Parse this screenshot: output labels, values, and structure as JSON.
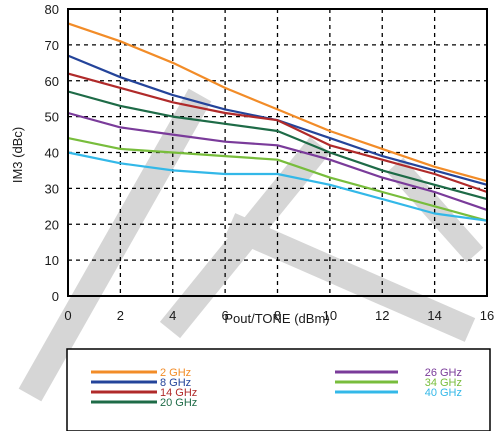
{
  "chart_data": {
    "type": "line",
    "title": "",
    "xlabel": "Pout/TONE (dBm)",
    "ylabel": "IM3 (dBc)",
    "xlim": [
      0,
      16
    ],
    "ylim": [
      0,
      80
    ],
    "xticks": [
      0,
      2,
      4,
      6,
      8,
      10,
      12,
      14,
      16
    ],
    "yticks": [
      0,
      10,
      20,
      30,
      40,
      50,
      60,
      70,
      80
    ],
    "grid": "dashed",
    "legend_position": "bottom",
    "watermark": "STITE",
    "series": [
      {
        "name": "2 GHz",
        "color": "#f28c28",
        "x": [
          0,
          2,
          4,
          6,
          8,
          10,
          12,
          14,
          16
        ],
        "y": [
          76,
          71,
          65,
          58,
          52,
          46,
          41,
          36,
          32
        ]
      },
      {
        "name": "8 GHz",
        "color": "#24449a",
        "x": [
          0,
          2,
          4,
          6,
          8,
          10,
          12,
          14,
          16
        ],
        "y": [
          67,
          61,
          56,
          52,
          49,
          44,
          39,
          35,
          31
        ]
      },
      {
        "name": "14 GHz",
        "color": "#b02a2a",
        "x": [
          0,
          2,
          4,
          6,
          8,
          10,
          12,
          14,
          16
        ],
        "y": [
          62,
          58,
          54,
          51,
          49,
          42,
          38,
          34,
          29
        ]
      },
      {
        "name": "20 GHz",
        "color": "#1e6b47",
        "x": [
          0,
          2,
          4,
          6,
          8,
          10,
          12,
          14,
          16
        ],
        "y": [
          57,
          53,
          50,
          48,
          46,
          40,
          35,
          31,
          27
        ]
      },
      {
        "name": "26 GHz",
        "color": "#7a3b9a",
        "x": [
          0,
          2,
          4,
          6,
          8,
          10,
          12,
          14,
          16
        ],
        "y": [
          51,
          47,
          45,
          43,
          42,
          38,
          33,
          29,
          24
        ]
      },
      {
        "name": "34 GHz",
        "color": "#78bd3c",
        "x": [
          0,
          2,
          4,
          6,
          8,
          10,
          12,
          14,
          16
        ],
        "y": [
          44,
          41,
          40,
          39,
          38,
          33,
          29,
          25,
          21
        ]
      },
      {
        "name": "40 GHz",
        "color": "#33b8e8",
        "x": [
          0,
          2,
          4,
          6,
          8,
          10,
          12,
          14,
          16
        ],
        "y": [
          40,
          37,
          35,
          34,
          34,
          31,
          27,
          23,
          21
        ]
      }
    ]
  }
}
